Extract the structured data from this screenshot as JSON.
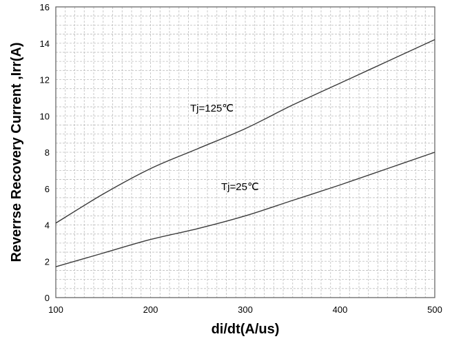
{
  "chart_data": {
    "type": "line",
    "title": "",
    "xlabel": "di/dt(A/us)",
    "ylabel": "Reverrse Recovery Current ,Irr(A)",
    "xlim": [
      100,
      500
    ],
    "ylim": [
      0,
      16
    ],
    "x_ticks": [
      "100",
      "200",
      "300",
      "400",
      "500"
    ],
    "y_ticks": [
      "0",
      "2",
      "4",
      "6",
      "8",
      "10",
      "12",
      "14",
      "16"
    ],
    "grid": true,
    "series": [
      {
        "name": "Tj=125℃",
        "x": [
          100,
          150,
          200,
          250,
          300,
          350,
          400,
          450,
          500
        ],
        "y": [
          4.1,
          5.7,
          7.1,
          8.2,
          9.3,
          10.6,
          11.8,
          13.0,
          14.2
        ]
      },
      {
        "name": "Tj=25℃",
        "x": [
          100,
          150,
          200,
          250,
          300,
          350,
          400,
          450,
          500
        ],
        "y": [
          1.7,
          2.45,
          3.2,
          3.8,
          4.5,
          5.35,
          6.2,
          7.1,
          8.0
        ]
      }
    ],
    "colors": {
      "line": "#3a3a3a",
      "grid": "#bdbdbd",
      "frame": "#5a5a5a"
    }
  }
}
